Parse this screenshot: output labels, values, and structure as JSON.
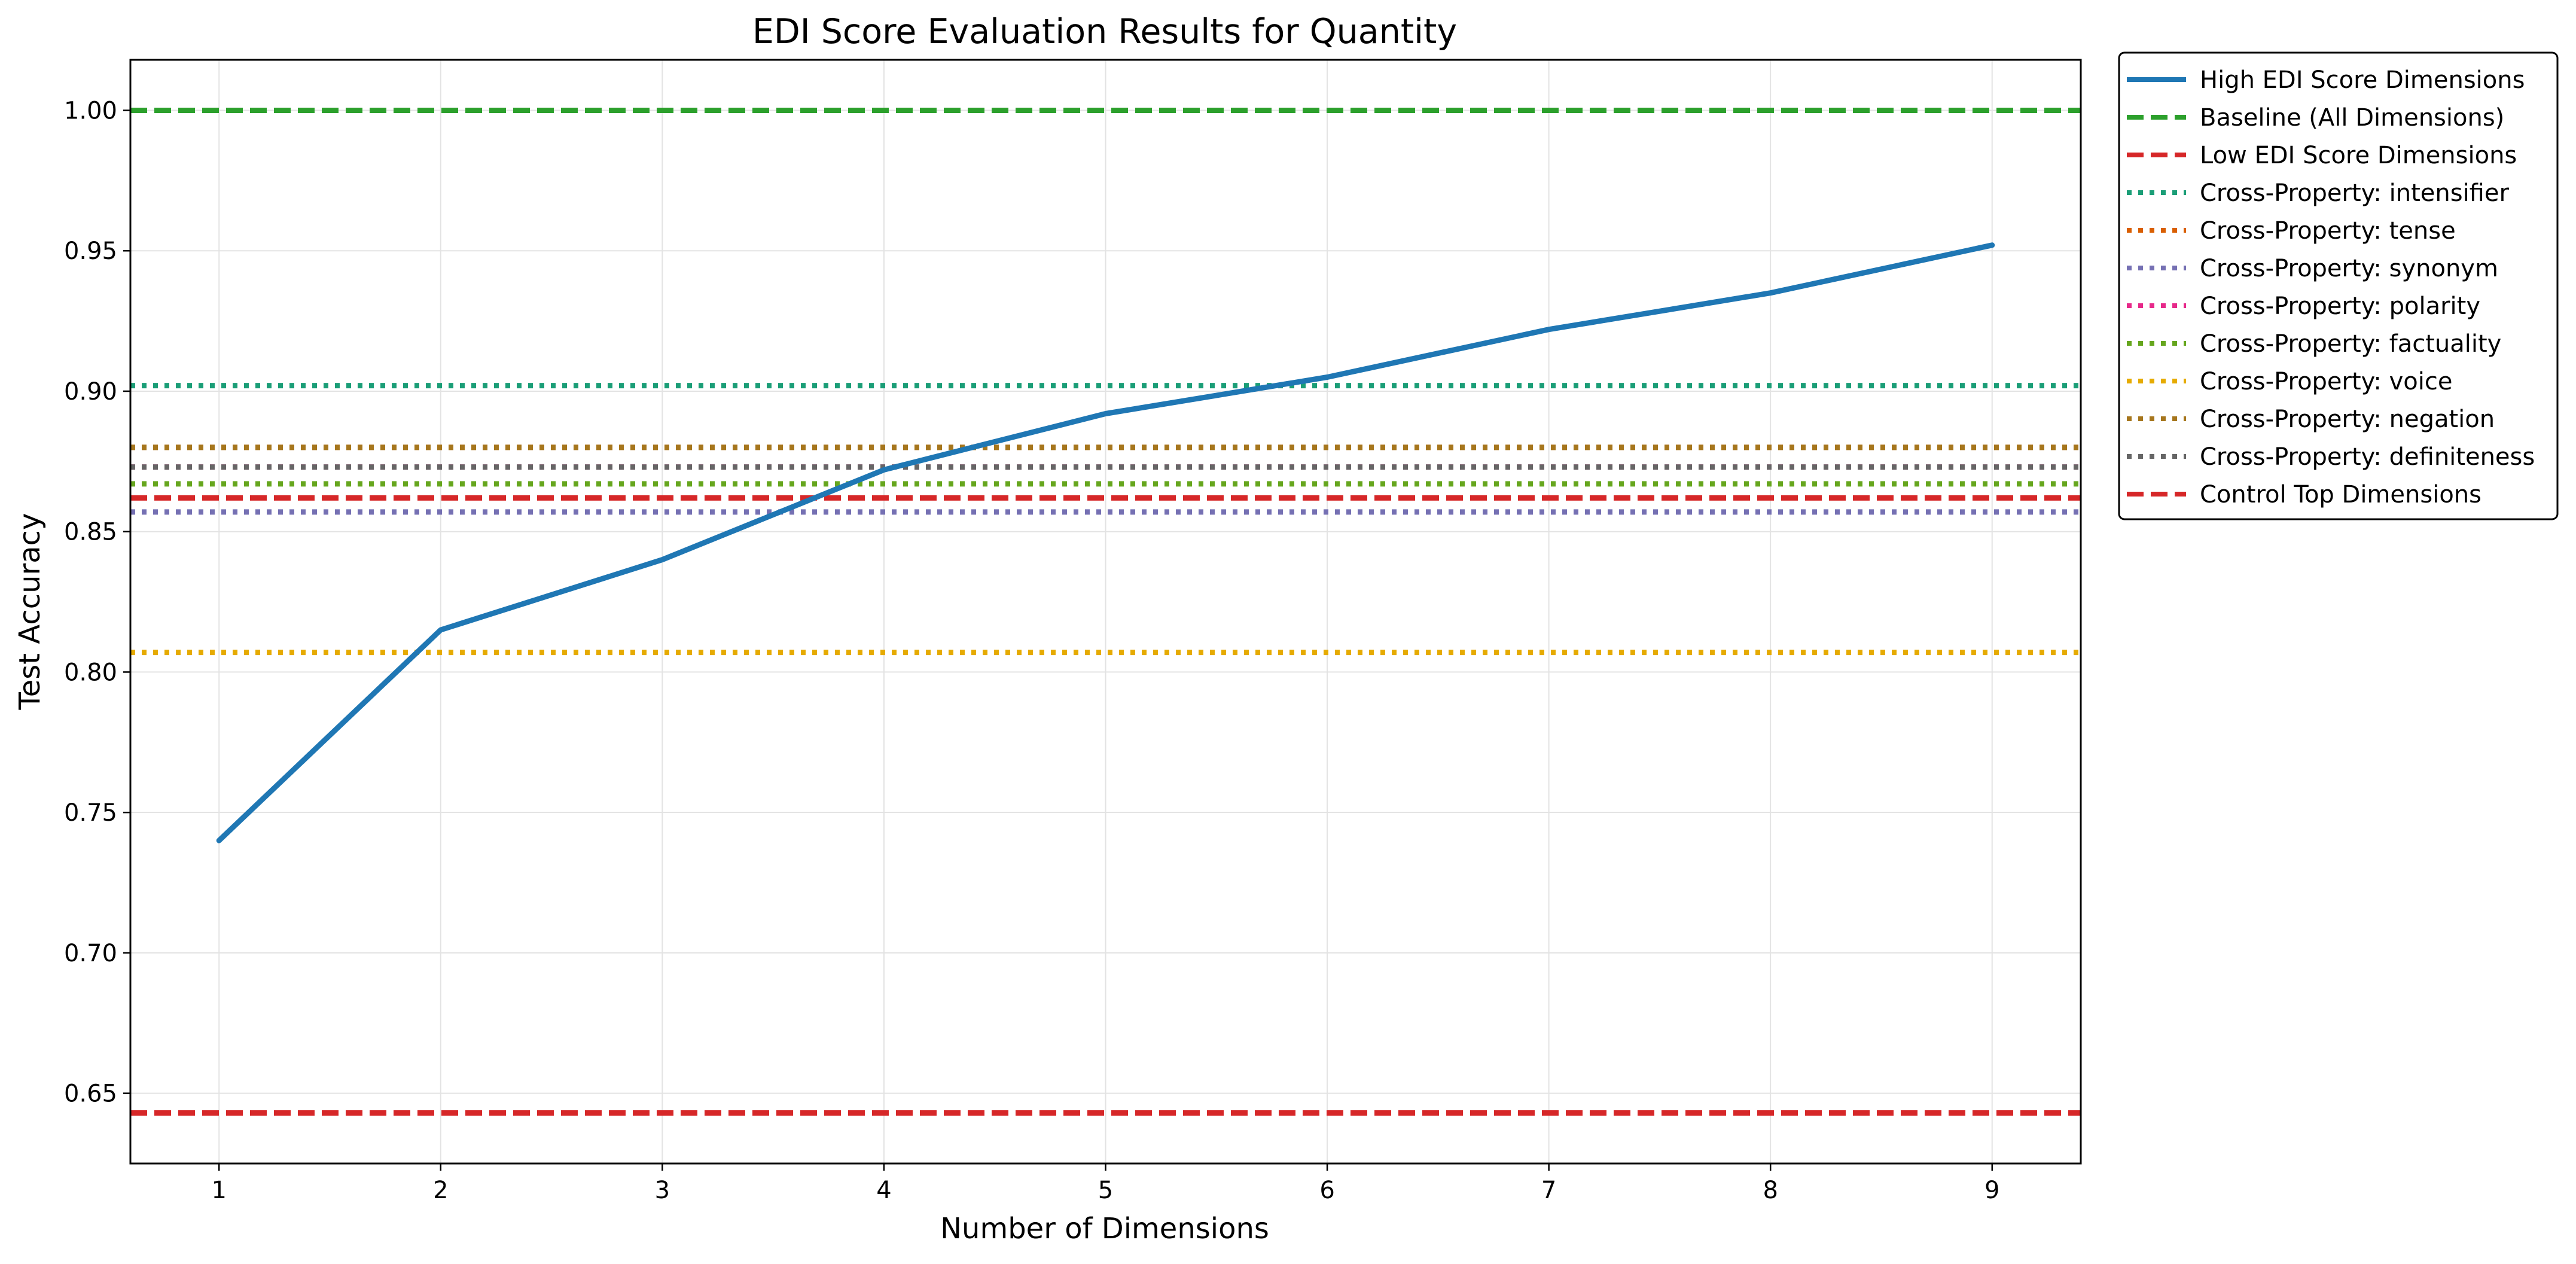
{
  "chart_data": {
    "type": "line",
    "title": "EDI Score Evaluation Results for Quantity",
    "xlabel": "Number of Dimensions",
    "ylabel": "Test Accuracy",
    "xlim": [
      0.6,
      9.4
    ],
    "ylim": [
      0.625,
      1.018
    ],
    "xticks": [
      1,
      2,
      3,
      4,
      5,
      6,
      7,
      8,
      9
    ],
    "yticks": [
      0.65,
      0.7,
      0.75,
      0.8,
      0.85,
      0.9,
      0.95,
      1.0
    ],
    "ytick_labels": [
      "0.65",
      "0.70",
      "0.75",
      "0.80",
      "0.85",
      "0.90",
      "0.95",
      "1.00"
    ],
    "grid": true,
    "legend_position": "outside-right",
    "series": [
      {
        "name": "High EDI Score Dimensions",
        "kind": "line",
        "color": "#1f77b4",
        "style": "solid",
        "x": [
          1,
          2,
          3,
          4,
          5,
          6,
          7,
          8,
          9
        ],
        "y": [
          0.74,
          0.815,
          0.84,
          0.872,
          0.892,
          0.905,
          0.922,
          0.935,
          0.952
        ]
      },
      {
        "name": "Baseline (All Dimensions)",
        "kind": "hline",
        "color": "#2ca02c",
        "style": "dashed",
        "y": 1.0
      },
      {
        "name": "Low EDI Score Dimensions",
        "kind": "hline",
        "color": "#d62728",
        "style": "dashed",
        "y": 0.643
      },
      {
        "name": "Cross-Property: intensifier",
        "kind": "hline",
        "color": "#1b9e77",
        "style": "dotted",
        "y": 0.902
      },
      {
        "name": "Cross-Property: tense",
        "kind": "hline",
        "color": "#d95f02",
        "style": "dotted",
        "y": 0.88
      },
      {
        "name": "Cross-Property: synonym",
        "kind": "hline",
        "color": "#7570b3",
        "style": "dotted",
        "y": 0.857
      },
      {
        "name": "Cross-Property: polarity",
        "kind": "hline",
        "color": "#e7298a",
        "style": "dotted",
        "y": 0.873
      },
      {
        "name": "Cross-Property: factuality",
        "kind": "hline",
        "color": "#66a61e",
        "style": "dotted",
        "y": 0.867
      },
      {
        "name": "Cross-Property: voice",
        "kind": "hline",
        "color": "#e6ab02",
        "style": "dotted",
        "y": 0.807
      },
      {
        "name": "Cross-Property: negation",
        "kind": "hline",
        "color": "#a6761d",
        "style": "dotted",
        "y": 0.88
      },
      {
        "name": "Cross-Property: definiteness",
        "kind": "hline",
        "color": "#666666",
        "style": "dotted",
        "y": 0.873
      },
      {
        "name": "Control Top Dimensions",
        "kind": "hline",
        "color": "#d62728",
        "style": "dashed",
        "y": 0.862
      }
    ]
  }
}
